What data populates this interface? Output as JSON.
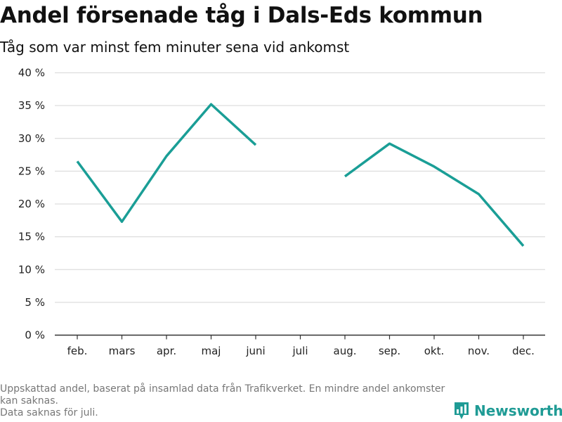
{
  "chart_data": {
    "type": "line",
    "title": "Andel försenade tåg i Dals-Eds kommun",
    "subtitle": "Tåg som var minst fem minuter sena vid ankomst",
    "categories": [
      "feb.",
      "mars",
      "apr.",
      "maj",
      "juni",
      "juli",
      "aug.",
      "sep.",
      "okt.",
      "nov.",
      "dec."
    ],
    "series": [
      {
        "values": [
          26.5,
          17.3,
          27.3,
          35.2,
          29.0,
          null,
          24.2,
          29.2,
          25.7,
          21.5,
          13.6
        ]
      }
    ],
    "ylim": [
      0,
      40
    ],
    "yticks": [
      0,
      5,
      10,
      15,
      20,
      25,
      30,
      35,
      40
    ],
    "ytick_labels": [
      "0 %",
      "5 %",
      "10 %",
      "15 %",
      "20 %",
      "25 %",
      "30 %",
      "35 %",
      "40 %"
    ],
    "grid": true,
    "line_color": "#1a9e96"
  },
  "footnote": {
    "line1": "Uppskattad andel, baserat på insamlad data från Trafikverket. En mindre andel ankomster kan saknas.",
    "line2": "Data saknas för juli."
  },
  "brand": {
    "name": "Newsworthy",
    "icon": "bar-chart-icon",
    "color": "#1f9b95"
  }
}
